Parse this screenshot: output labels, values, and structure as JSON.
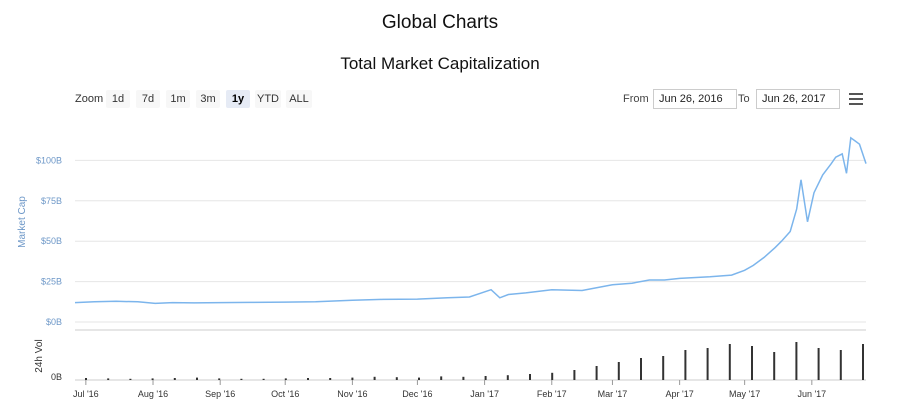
{
  "page": {
    "title": "Global Charts"
  },
  "toolbar": {
    "zoom_label": "Zoom",
    "zoom_buttons": [
      {
        "label": "1d",
        "active": false
      },
      {
        "label": "7d",
        "active": false
      },
      {
        "label": "1m",
        "active": false
      },
      {
        "label": "3m",
        "active": false
      },
      {
        "label": "1y",
        "active": true
      },
      {
        "label": "YTD",
        "active": false
      },
      {
        "label": "ALL",
        "active": false
      }
    ],
    "from_label": "From",
    "from_value": "Jun 26, 2016",
    "to_label": "To",
    "to_value": "Jun 26, 2017",
    "menu_icon": "hamburger-menu-icon"
  },
  "colors": {
    "line": "#7cb5ec",
    "axis_text": "#6e98c8",
    "grid": "#e6e6e6",
    "volume_bar": "#333333"
  },
  "chart_data": {
    "type": "line",
    "title": "Total Market Capitalization",
    "ylabel": "Market Cap",
    "y_ticks": [
      "$0B",
      "$25B",
      "$50B",
      "$75B",
      "$100B"
    ],
    "ylim": [
      0,
      125
    ],
    "x_ticks": [
      "Jul '16",
      "Aug '16",
      "Sep '16",
      "Oct '16",
      "Nov '16",
      "Dec '16",
      "Jan '17",
      "Feb '17",
      "Mar '17",
      "Apr '17",
      "May '17",
      "Jun '17"
    ],
    "xlim": [
      "2016-06-26",
      "2017-06-26"
    ],
    "grid": true,
    "series": [
      {
        "x": [
          "2016-06-26",
          "2016-07-05",
          "2016-07-15",
          "2016-07-25",
          "2016-08-02",
          "2016-08-10",
          "2016-08-20",
          "2016-09-01",
          "2016-09-15",
          "2016-10-01",
          "2016-10-15",
          "2016-11-01",
          "2016-11-15",
          "2016-12-01",
          "2016-12-15",
          "2016-12-25",
          "2017-01-04",
          "2017-01-08",
          "2017-01-12",
          "2017-01-20",
          "2017-02-01",
          "2017-02-15",
          "2017-03-01",
          "2017-03-10",
          "2017-03-18",
          "2017-03-25",
          "2017-04-01",
          "2017-04-15",
          "2017-04-25",
          "2017-05-01",
          "2017-05-05",
          "2017-05-10",
          "2017-05-15",
          "2017-05-18",
          "2017-05-22",
          "2017-05-25",
          "2017-05-27",
          "2017-05-30",
          "2017-06-02",
          "2017-06-06",
          "2017-06-10",
          "2017-06-12",
          "2017-06-15",
          "2017-06-17",
          "2017-06-19",
          "2017-06-21",
          "2017-06-23",
          "2017-06-26"
        ],
        "y": [
          12,
          12.5,
          12.8,
          12.5,
          11.5,
          12,
          11.8,
          12,
          12.1,
          12.3,
          12.5,
          13.5,
          14,
          14.2,
          15,
          15.5,
          20,
          15,
          17,
          18,
          20,
          19.5,
          23,
          24,
          26,
          26,
          27,
          28,
          29,
          32,
          35,
          40,
          46,
          50,
          56,
          70,
          88,
          62,
          80,
          91,
          98,
          102,
          104,
          92,
          114,
          112,
          110,
          98
        ]
      }
    ],
    "volume": {
      "ylabel": "24h Vol",
      "y_ticks": [
        "0B"
      ],
      "note": "daily trading volume bars, relative scale",
      "values": [
        0.05,
        0.04,
        0.03,
        0.04,
        0.05,
        0.06,
        0.04,
        0.03,
        0.03,
        0.04,
        0.05,
        0.05,
        0.06,
        0.08,
        0.07,
        0.06,
        0.09,
        0.08,
        0.1,
        0.12,
        0.15,
        0.18,
        0.25,
        0.35,
        0.45,
        0.55,
        0.6,
        0.75,
        0.8,
        0.9,
        0.85,
        0.7,
        0.95,
        0.8,
        0.75,
        0.9
      ]
    }
  }
}
